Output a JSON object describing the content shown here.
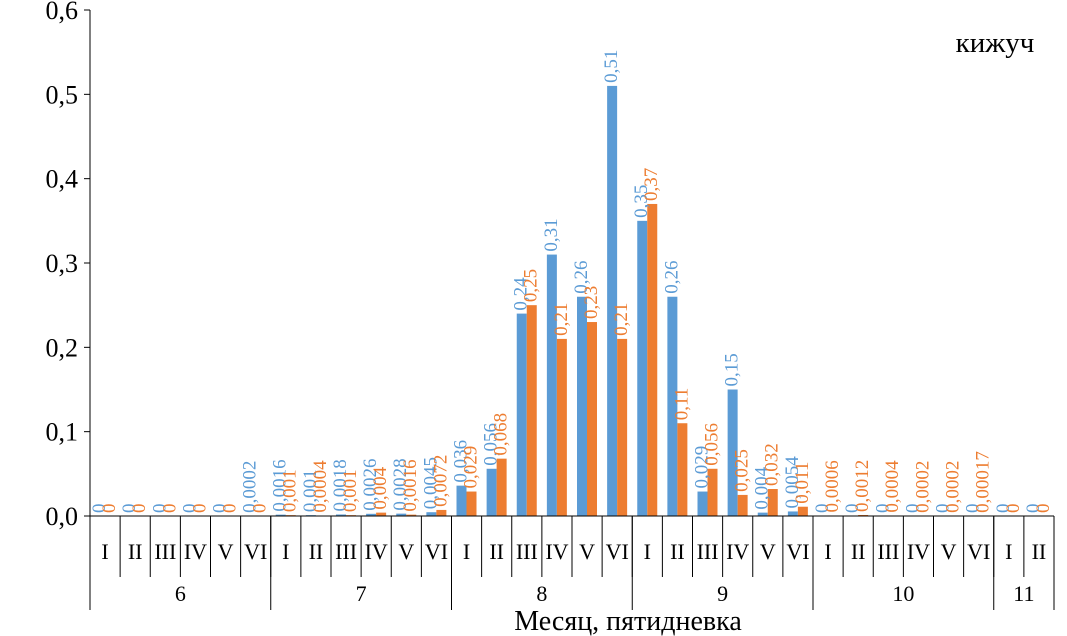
{
  "chart_data": {
    "type": "bar",
    "title": "кижуч",
    "xlabel": "Месяц, пятидневка",
    "ylabel": "",
    "ylim": [
      0,
      0.6
    ],
    "yticks": [
      "0,0",
      "0,1",
      "0,2",
      "0,3",
      "0,4",
      "0,5",
      "0,6"
    ],
    "grid": false,
    "legend": "none",
    "groups": [
      {
        "label": "6",
        "categories": [
          "I",
          "II",
          "III",
          "IV",
          "V",
          "VI"
        ]
      },
      {
        "label": "7",
        "categories": [
          "I",
          "II",
          "III",
          "IV",
          "V",
          "VI"
        ]
      },
      {
        "label": "8",
        "categories": [
          "I",
          "II",
          "III",
          "IV",
          "V",
          "VI"
        ]
      },
      {
        "label": "9",
        "categories": [
          "I",
          "II",
          "III",
          "IV",
          "V",
          "VI"
        ]
      },
      {
        "label": "10",
        "categories": [
          "I",
          "II",
          "III",
          "IV",
          "V",
          "VI"
        ]
      },
      {
        "label": "11",
        "categories": [
          "I",
          "II"
        ]
      }
    ],
    "series": [
      {
        "color": "#5B9BD5",
        "values": [
          0,
          0,
          0,
          0,
          0,
          0.0002,
          0.0016,
          0.001,
          0.0018,
          0.0026,
          0.0028,
          0.0045,
          0.036,
          0.056,
          0.24,
          0.31,
          0.26,
          0.51,
          0.35,
          0.26,
          0.029,
          0.15,
          0.004,
          0.0054,
          0,
          0,
          0,
          0,
          0,
          0,
          0,
          0
        ],
        "labels": [
          "0",
          "0",
          "0",
          "0",
          "0",
          "0,0002",
          "0,0016",
          "0,001",
          "0,0018",
          "0,0026",
          "0,0028",
          "0,0045",
          "0,036",
          "0,056",
          "0,24",
          "0,31",
          "0,26",
          "0,51",
          "0,35",
          "0,26",
          "0,029",
          "0,15",
          "0,004",
          "0,0054",
          "0",
          "0",
          "0",
          "0",
          "0",
          "0",
          "0",
          "0"
        ]
      },
      {
        "color": "#ED7D31",
        "values": [
          0,
          0,
          0,
          0,
          0,
          0,
          0.001,
          0.0004,
          0.001,
          0.004,
          0.0016,
          0.0072,
          0.029,
          0.068,
          0.25,
          0.21,
          0.23,
          0.21,
          0.37,
          0.11,
          0.056,
          0.025,
          0.032,
          0.011,
          0.0006,
          0.0012,
          0.0004,
          0.0002,
          0.0002,
          0.00017,
          0,
          0
        ],
        "labels": [
          "0",
          "0",
          "0",
          "0",
          "0",
          "0",
          "0,001",
          "0,0004",
          "0,001",
          "0,004",
          "0,0016",
          "0,0072",
          "0,029",
          "0,068",
          "0,25",
          "0,21",
          "0,23",
          "0,21",
          "0,37",
          "0,11",
          "0,056",
          "0,025",
          "0,032",
          "0,011",
          "0,0006",
          "0,0012",
          "0,0004",
          "0,0002",
          "0,0002",
          "0,00017",
          "0",
          "0"
        ]
      }
    ]
  }
}
